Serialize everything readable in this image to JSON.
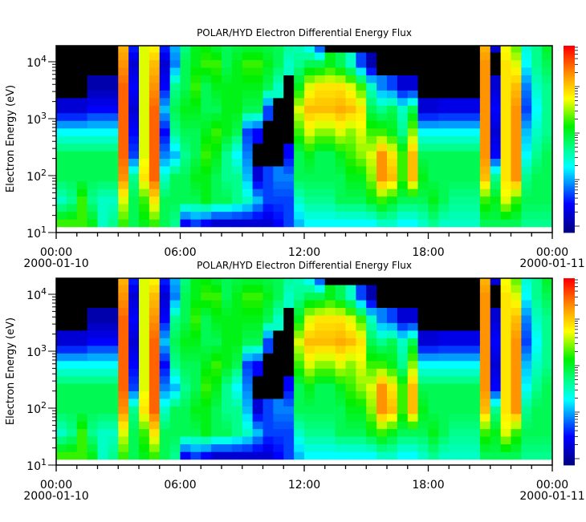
{
  "chart_data": [
    {
      "type": "heatmap",
      "title": "POLAR/HYD  Electron Differential Energy Flux",
      "ylabel": "Electron Energy (eV)",
      "xlabel": "",
      "y_scale": "log",
      "ylim": [
        10,
        20000
      ],
      "x_range": [
        "2000-01-10 00:00",
        "2000-01-11 00:00"
      ],
      "x_ticks": [
        {
          "time": "00:00",
          "date": "2000-01-10"
        },
        {
          "time": "06:00",
          "date": ""
        },
        {
          "time": "12:00",
          "date": ""
        },
        {
          "time": "18:00",
          "date": ""
        },
        {
          "time": "00:00",
          "date": "2000-01-11"
        }
      ],
      "y_ticks": [
        {
          "base": "10",
          "exp": "1"
        },
        {
          "base": "10",
          "exp": "2"
        },
        {
          "base": "10",
          "exp": "3"
        },
        {
          "base": "10",
          "exp": "4"
        }
      ],
      "colorbar": {
        "colormap": "rainbow",
        "labels": false,
        "fill_color": "#000000"
      }
    },
    {
      "type": "heatmap",
      "title": "POLAR/HYD  Electron Differential Energy Flux",
      "ylabel": "Electron Energy (eV)",
      "xlabel": "",
      "y_scale": "log",
      "ylim": [
        10,
        20000
      ],
      "x_range": [
        "2000-01-10 00:00",
        "2000-01-11 00:00"
      ],
      "x_ticks": [
        {
          "time": "00:00",
          "date": "2000-01-10"
        },
        {
          "time": "06:00",
          "date": ""
        },
        {
          "time": "12:00",
          "date": ""
        },
        {
          "time": "18:00",
          "date": ""
        },
        {
          "time": "00:00",
          "date": "2000-01-11"
        }
      ],
      "y_ticks": [
        {
          "base": "10",
          "exp": "1"
        },
        {
          "base": "10",
          "exp": "2"
        },
        {
          "base": "10",
          "exp": "3"
        },
        {
          "base": "10",
          "exp": "4"
        }
      ],
      "colorbar": {
        "colormap": "rainbow",
        "labels": false,
        "fill_color": "#000000"
      }
    }
  ],
  "heatmap_grid": {
    "time_step_hours": 0.5,
    "energy_bins_eV": [
      12.6,
      32,
      80,
      200,
      500,
      1260,
      3160,
      7940,
      20000
    ],
    "level_note_value_for_no_data": -1,
    "levels": [
      [
        0.6,
        0.4,
        0.5,
        0.5,
        0.35,
        0.1,
        -1,
        -1,
        -1
      ],
      [
        0.6,
        0.45,
        0.5,
        0.5,
        0.35,
        0.1,
        -1,
        -1,
        -1
      ],
      [
        0.6,
        0.6,
        0.5,
        0.5,
        0.35,
        0.1,
        -1,
        -1,
        -1
      ],
      [
        0.55,
        0.45,
        0.5,
        0.5,
        0.35,
        0.15,
        0.05,
        -1,
        -1
      ],
      [
        0.4,
        0.4,
        0.5,
        0.5,
        0.35,
        0.15,
        0.05,
        -1,
        -1
      ],
      [
        0.45,
        0.4,
        0.5,
        0.5,
        0.35,
        0.15,
        0.05,
        -1,
        -1
      ],
      [
        0.6,
        0.7,
        0.85,
        0.9,
        0.9,
        0.9,
        0.9,
        0.85,
        0.8
      ],
      [
        0.5,
        0.5,
        0.45,
        0.2,
        0.15,
        0.1,
        0.15,
        0.1,
        0.2
      ],
      [
        0.55,
        0.6,
        0.75,
        0.7,
        0.7,
        0.7,
        0.7,
        0.7,
        0.7
      ],
      [
        0.6,
        0.75,
        0.9,
        0.9,
        0.9,
        0.9,
        0.85,
        0.8,
        0.7
      ],
      [
        0.5,
        0.5,
        0.4,
        0.25,
        0.15,
        0.3,
        0.15,
        0.1,
        0.2
      ],
      [
        0.45,
        0.5,
        0.5,
        0.3,
        0.45,
        0.5,
        0.45,
        0.25,
        0.3
      ],
      [
        0.15,
        0.5,
        0.5,
        0.45,
        0.5,
        0.55,
        0.5,
        0.5,
        0.45
      ],
      [
        0.2,
        0.5,
        0.55,
        0.5,
        0.5,
        0.55,
        0.6,
        0.55,
        0.55
      ],
      [
        0.15,
        0.55,
        0.55,
        0.6,
        0.55,
        0.5,
        0.5,
        0.6,
        0.55
      ],
      [
        0.1,
        0.5,
        0.5,
        0.55,
        0.6,
        0.5,
        0.55,
        0.6,
        0.5
      ],
      [
        0.1,
        0.5,
        0.45,
        0.45,
        0.55,
        0.55,
        0.55,
        0.5,
        0.5
      ],
      [
        0.1,
        0.45,
        0.45,
        0.35,
        0.5,
        0.55,
        0.55,
        0.55,
        0.5
      ],
      [
        0.1,
        0.4,
        0.3,
        0.25,
        0.2,
        0.5,
        0.55,
        0.6,
        0.5
      ],
      [
        0.1,
        0.3,
        0.1,
        -1,
        0.15,
        0.5,
        0.55,
        0.6,
        0.5
      ],
      [
        0.1,
        0.2,
        0.2,
        -1,
        -1,
        0.2,
        0.5,
        0.55,
        0.5
      ],
      [
        0.15,
        0.2,
        0.25,
        -1,
        -1,
        -1,
        0.4,
        0.5,
        0.5
      ],
      [
        0.2,
        0.2,
        0.25,
        0.15,
        -1,
        -1,
        -1,
        0.4,
        0.45
      ],
      [
        0.3,
        0.4,
        0.5,
        0.5,
        0.6,
        0.7,
        0.55,
        0.45,
        0.4
      ],
      [
        0.35,
        0.45,
        0.5,
        0.55,
        0.7,
        0.8,
        0.7,
        0.5,
        0.3
      ],
      [
        0.35,
        0.45,
        0.5,
        0.5,
        0.65,
        0.8,
        0.75,
        0.5,
        0.1
      ],
      [
        0.35,
        0.45,
        0.5,
        0.5,
        0.65,
        0.8,
        0.75,
        0.55,
        -1
      ],
      [
        0.35,
        0.5,
        0.5,
        0.55,
        0.7,
        0.82,
        0.75,
        0.5,
        -1
      ],
      [
        0.35,
        0.5,
        0.55,
        0.6,
        0.65,
        0.8,
        0.7,
        0.4,
        -1
      ],
      [
        0.35,
        0.5,
        0.55,
        0.65,
        0.7,
        0.75,
        0.6,
        0.2,
        -1
      ],
      [
        0.35,
        0.55,
        0.65,
        0.7,
        0.6,
        0.5,
        0.4,
        0.05,
        -1
      ],
      [
        0.4,
        0.6,
        0.85,
        0.85,
        0.6,
        0.45,
        0.25,
        -1,
        -1
      ],
      [
        0.4,
        0.55,
        0.8,
        0.75,
        0.55,
        0.5,
        0.2,
        -1,
        -1
      ],
      [
        0.35,
        0.5,
        0.6,
        0.6,
        0.45,
        0.4,
        0.1,
        -1,
        -1
      ],
      [
        0.35,
        0.5,
        0.8,
        0.8,
        0.65,
        0.5,
        0.1,
        -1,
        -1
      ],
      [
        0.4,
        0.5,
        0.55,
        0.5,
        0.35,
        0.1,
        -1,
        -1,
        -1
      ],
      [
        0.45,
        0.55,
        0.5,
        0.5,
        0.35,
        0.1,
        -1,
        -1,
        -1
      ],
      [
        0.4,
        0.5,
        0.5,
        0.5,
        0.35,
        0.12,
        -1,
        -1,
        -1
      ],
      [
        0.4,
        0.45,
        0.5,
        0.5,
        0.35,
        0.12,
        -1,
        -1,
        -1
      ],
      [
        0.4,
        0.45,
        0.5,
        0.5,
        0.35,
        0.12,
        -1,
        -1,
        -1
      ],
      [
        0.4,
        0.45,
        0.5,
        0.5,
        0.35,
        0.12,
        -1,
        -1,
        -1
      ],
      [
        0.5,
        0.6,
        0.8,
        0.85,
        0.85,
        0.85,
        0.85,
        0.85,
        0.8
      ],
      [
        0.5,
        0.55,
        0.45,
        0.15,
        0.1,
        0.15,
        0.1,
        -1,
        0.1
      ],
      [
        0.5,
        0.7,
        0.75,
        0.75,
        0.75,
        0.75,
        0.75,
        0.75,
        0.7
      ],
      [
        0.5,
        0.6,
        0.85,
        0.85,
        0.85,
        0.85,
        0.8,
        0.7,
        0.6
      ],
      [
        0.45,
        0.5,
        0.45,
        0.35,
        0.3,
        0.2,
        0.25,
        0.35,
        0.4
      ],
      [
        0.45,
        0.5,
        0.5,
        0.45,
        0.4,
        0.35,
        0.4,
        0.45,
        0.45
      ],
      [
        0.45,
        0.5,
        0.5,
        0.5,
        0.45,
        0.45,
        0.45,
        0.5,
        0.55
      ]
    ]
  }
}
